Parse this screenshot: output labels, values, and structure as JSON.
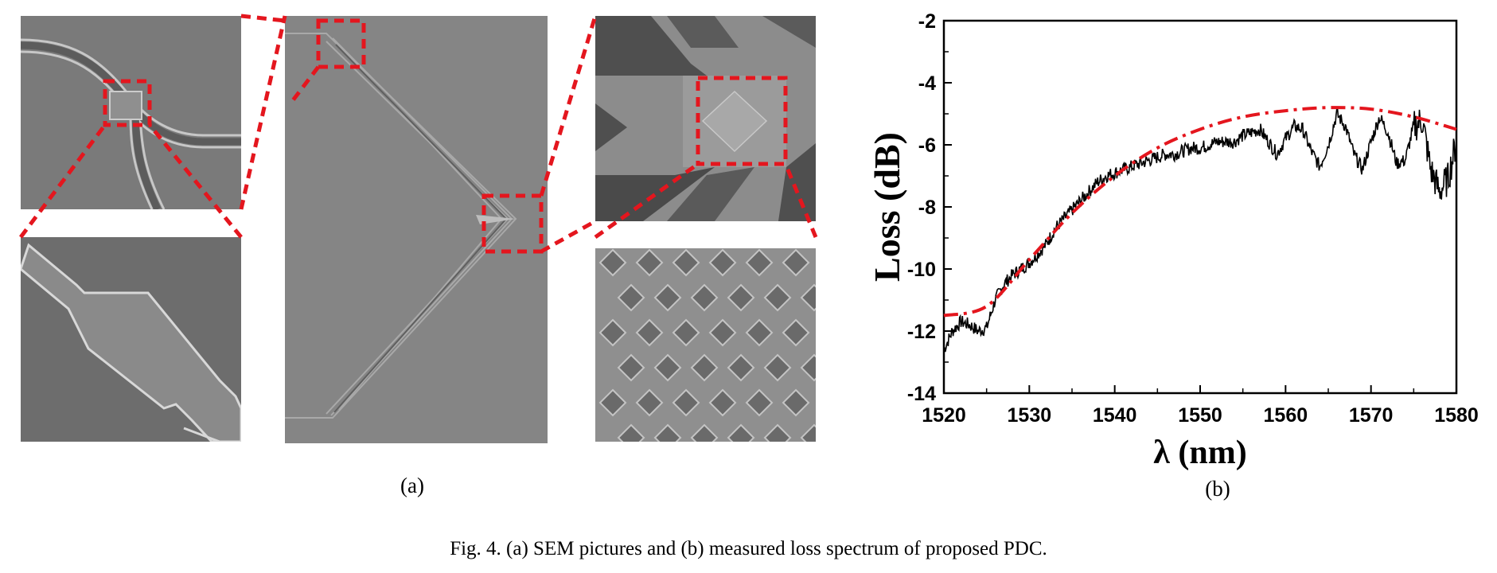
{
  "figure": {
    "label_a": "(a)",
    "label_b": "(b)",
    "caption": "Fig. 4. (a) SEM pictures and (b) measured loss spectrum of proposed PDC."
  },
  "colors": {
    "highlight": "#e4161e",
    "sem_gray": "#7b7b7b",
    "measured": "#000000",
    "envelope": "#e4161e"
  },
  "chart_data": {
    "type": "line",
    "xlabel": "λ (nm)",
    "ylabel": "Loss (dB)",
    "xlim": [
      1520,
      1580
    ],
    "ylim": [
      -14,
      -2
    ],
    "xticks": [
      1520,
      1530,
      1540,
      1550,
      1560,
      1570,
      1580
    ],
    "yticks": [
      -2,
      -4,
      -6,
      -8,
      -10,
      -12,
      -14
    ],
    "grid": false,
    "series": [
      {
        "style": "solid-black-noisy",
        "x": [
          1520,
          1521,
          1522,
          1523,
          1524,
          1525,
          1526,
          1527,
          1528,
          1529,
          1530,
          1531,
          1532,
          1533,
          1534,
          1535,
          1536,
          1537,
          1538,
          1539,
          1540,
          1541,
          1542,
          1543,
          1544,
          1545,
          1546,
          1547,
          1548,
          1549,
          1550,
          1551,
          1552,
          1553,
          1554,
          1555,
          1556,
          1557,
          1558,
          1559,
          1560,
          1561,
          1562,
          1563,
          1564,
          1565,
          1566,
          1567,
          1568,
          1569,
          1570,
          1571,
          1572,
          1573,
          1574,
          1575,
          1576,
          1577,
          1578,
          1579,
          1580
        ],
        "y": [
          -12.6,
          -12.0,
          -11.7,
          -11.8,
          -12.0,
          -11.9,
          -11.0,
          -10.5,
          -10.2,
          -10.0,
          -9.8,
          -9.5,
          -9.2,
          -8.7,
          -8.4,
          -8.1,
          -7.8,
          -7.5,
          -7.2,
          -7.0,
          -6.9,
          -6.8,
          -6.7,
          -6.6,
          -6.5,
          -6.4,
          -6.3,
          -6.3,
          -6.2,
          -6.1,
          -6.1,
          -6.0,
          -5.9,
          -5.9,
          -5.9,
          -5.7,
          -5.6,
          -5.5,
          -5.9,
          -6.3,
          -5.8,
          -5.4,
          -5.5,
          -6.2,
          -6.7,
          -6.0,
          -5.0,
          -5.4,
          -6.3,
          -6.8,
          -5.9,
          -5.1,
          -5.6,
          -6.6,
          -6.5,
          -5.4,
          -5.2,
          -6.8,
          -7.5,
          -7.1,
          -5.9
        ]
      },
      {
        "style": "dash-dot-red",
        "x": [
          1520,
          1525,
          1530,
          1535,
          1540,
          1545,
          1550,
          1555,
          1560,
          1565,
          1570,
          1575,
          1580
        ],
        "y": [
          -11.5,
          -11.2,
          -9.7,
          -8.2,
          -7.0,
          -6.1,
          -5.5,
          -5.1,
          -4.9,
          -4.8,
          -4.85,
          -5.1,
          -5.5
        ]
      }
    ]
  }
}
